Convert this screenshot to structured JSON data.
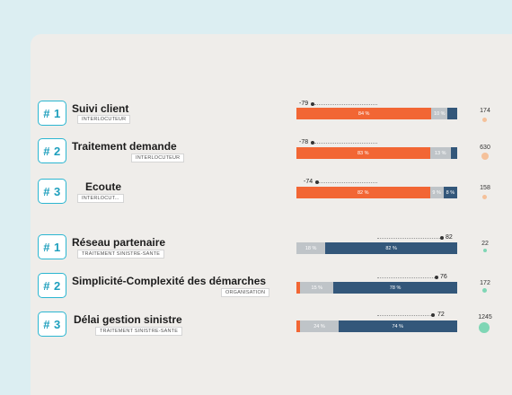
{
  "colors": {
    "orange": "#f26634",
    "grey": "#bfc4c8",
    "blue": "#33577a",
    "teal": "#2bb6d1"
  },
  "top": [
    {
      "rank": "# 1",
      "title": "Suivi client",
      "tag": "INTERLOCUTEUR",
      "score": "-79",
      "orange": "84 %",
      "grey": "10 %",
      "blue": "",
      "count": "174"
    },
    {
      "rank": "# 2",
      "title": "Traitement demande",
      "tag": "INTERLOCUTEUR",
      "score": "-78",
      "orange": "83 %",
      "grey": "13 %",
      "blue": "",
      "count": "630"
    },
    {
      "rank": "# 3",
      "title": "Ecoute",
      "tag": "INTERLOCUT...",
      "score": "-74",
      "orange": "82 %",
      "grey": "9 %",
      "blue": "8 %",
      "count": "158"
    }
  ],
  "bottom": [
    {
      "rank": "# 1",
      "title": "Réseau partenaire",
      "tag": "TRAITEMENT SINISTRE-SANTE",
      "score": "82",
      "orange": "",
      "grey": "18 %",
      "blue": "82 %",
      "count": "22"
    },
    {
      "rank": "# 2",
      "title": "Simplicité-Complexité des démarches",
      "tag": "ORGANISATION",
      "score": "76",
      "orange": "",
      "grey": "15 %",
      "blue": "78 %",
      "count": "172"
    },
    {
      "rank": "# 3",
      "title": "Délai gestion sinistre",
      "tag": "TRAITEMENT SINISTRE-SANTE",
      "score": "72",
      "orange": "",
      "grey": "24 %",
      "blue": "74 %",
      "count": "1245"
    }
  ]
}
